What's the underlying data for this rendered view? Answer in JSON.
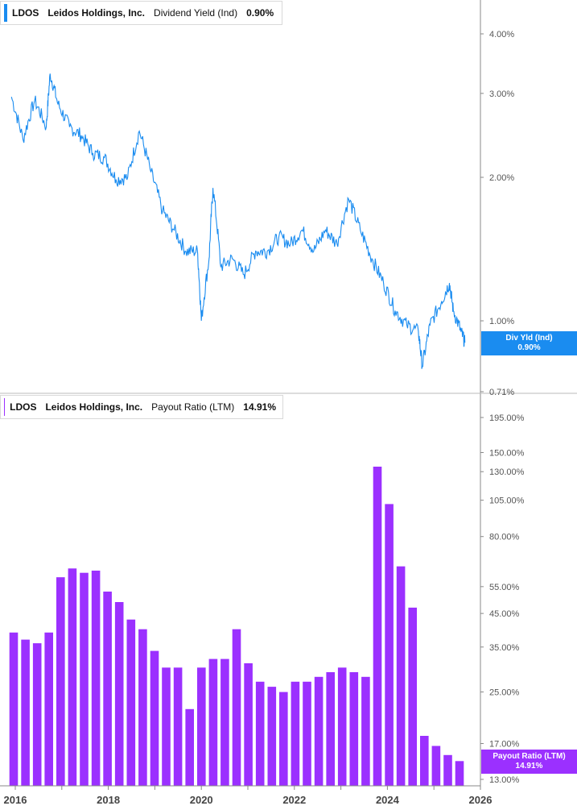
{
  "top_legend": {
    "ticker": "LDOS",
    "company": "Leidos Holdings, Inc.",
    "metric": "Dividend Yield (Ind)",
    "value": "0.90%"
  },
  "bottom_legend": {
    "ticker": "LDOS",
    "company": "Leidos Holdings, Inc.",
    "metric": "Payout Ratio (LTM)",
    "value": "14.91%"
  },
  "top_flag": {
    "label": "Div Yld (Ind)",
    "value": "0.90%"
  },
  "bottom_flag": {
    "label": "Payout Ratio (LTM)",
    "value": "14.91%"
  },
  "colors": {
    "yield_line": "#1a8cf0",
    "payout_bars": "#9b30ff",
    "flag_top": "#1a8cf0",
    "flag_bottom": "#9b30ff",
    "axis": "#555555"
  },
  "chart_data": [
    {
      "type": "line",
      "scale": "log",
      "series": [
        {
          "name": "Dividend Yield (Ind)",
          "x": [
            "2015-12",
            "2016-03",
            "2016-06",
            "2016-09",
            "2016-10",
            "2016-12",
            "2017-03",
            "2017-06",
            "2017-09",
            "2017-12",
            "2018-03",
            "2018-06",
            "2018-09",
            "2018-12",
            "2019-03",
            "2019-06",
            "2019-09",
            "2019-12",
            "2020-01",
            "2020-03",
            "2020-04",
            "2020-06",
            "2020-09",
            "2020-12",
            "2021-03",
            "2021-06",
            "2021-09",
            "2021-12",
            "2022-03",
            "2022-06",
            "2022-09",
            "2022-12",
            "2023-03",
            "2023-06",
            "2023-09",
            "2023-12",
            "2024-03",
            "2024-06",
            "2024-09",
            "2024-10",
            "2024-12",
            "2025-03",
            "2025-05",
            "2025-06",
            "2025-08",
            "2025-09"
          ],
          "y": [
            2.95,
            2.4,
            2.9,
            2.55,
            3.3,
            2.85,
            2.55,
            2.45,
            2.25,
            2.2,
            1.98,
            2.0,
            2.5,
            2.05,
            1.7,
            1.55,
            1.4,
            1.4,
            1.0,
            1.35,
            1.9,
            1.3,
            1.35,
            1.25,
            1.4,
            1.4,
            1.5,
            1.45,
            1.55,
            1.4,
            1.55,
            1.45,
            1.8,
            1.55,
            1.35,
            1.2,
            1.05,
            0.98,
            0.95,
            0.8,
            0.98,
            1.1,
            1.2,
            1.05,
            0.95,
            0.9
          ]
        }
      ],
      "ylim": [
        0.71,
        5.0
      ],
      "yticks": [
        "4.00%",
        "3.00%",
        "2.00%",
        "1.00%",
        "0.71%"
      ],
      "ytick_values": [
        4.0,
        3.0,
        2.0,
        1.0,
        0.71
      ],
      "grid": false
    },
    {
      "type": "bar",
      "scale": "log",
      "series": [
        {
          "name": "Payout Ratio (LTM)",
          "x": [
            "2016-01",
            "2016-04",
            "2016-07",
            "2016-10",
            "2017-01",
            "2017-04",
            "2017-07",
            "2017-10",
            "2018-01",
            "2018-04",
            "2018-07",
            "2018-10",
            "2019-01",
            "2019-04",
            "2019-07",
            "2019-10",
            "2020-01",
            "2020-04",
            "2020-07",
            "2020-10",
            "2021-01",
            "2021-04",
            "2021-07",
            "2021-10",
            "2022-01",
            "2022-04",
            "2022-07",
            "2022-10",
            "2023-01",
            "2023-04",
            "2023-07",
            "2023-10",
            "2024-01",
            "2024-04",
            "2024-07",
            "2024-10",
            "2025-01",
            "2025-04",
            "2025-07"
          ],
          "values": [
            39,
            37,
            36,
            39,
            59,
            63,
            61,
            62,
            53,
            49,
            43,
            40,
            34,
            30,
            30,
            22,
            30,
            32,
            32,
            40,
            31,
            27,
            26,
            25,
            27,
            27,
            28,
            29,
            30,
            29,
            28,
            135,
            102,
            64,
            47,
            18.0,
            16.7,
            15.6,
            14.91
          ]
        }
      ],
      "ylim": [
        12.8,
        245
      ],
      "yticks": [
        "195.00%",
        "150.00%",
        "130.00%",
        "105.00%",
        "80.00%",
        "55.00%",
        "45.00%",
        "35.00%",
        "25.00%",
        "17.00%",
        "13.00%"
      ],
      "ytick_values": [
        195,
        150,
        130,
        105,
        80,
        55,
        45,
        35,
        25,
        17,
        13
      ],
      "grid": false
    }
  ],
  "x_axis": {
    "labels": [
      "2016",
      "2018",
      "2020",
      "2022",
      "2024",
      "2026"
    ],
    "years": [
      2016,
      2018,
      2020,
      2022,
      2024,
      2026
    ]
  }
}
